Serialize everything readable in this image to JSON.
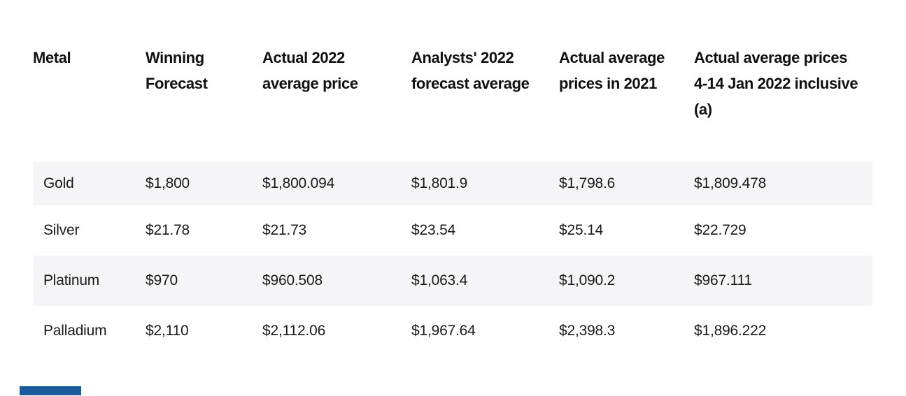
{
  "page": {
    "background": "#ffffff",
    "accent_bar_color": "#1b5a9b",
    "stripe_color": "#f5f4f6",
    "header_text_color": "#111111",
    "body_text_color": "#1a1a1a"
  },
  "table": {
    "columns": [
      {
        "label": "Metal"
      },
      {
        "label": "Winning Forecast"
      },
      {
        "label": "Actual 2022 average price"
      },
      {
        "label": "Analysts' 2022 forecast average"
      },
      {
        "label": "Actual average prices in 2021"
      },
      {
        "label": "Actual average prices 4-14 Jan 2022 inclusive (a)"
      }
    ],
    "rows": [
      {
        "metal": "Gold",
        "values": [
          "$1,800",
          "$1,800.094",
          "$1,801.9",
          "$1,798.6",
          "$1,809.478"
        ]
      },
      {
        "metal": "Silver",
        "values": [
          "$21.78",
          "$21.73",
          "$23.54",
          "$25.14",
          "$22.729"
        ]
      },
      {
        "metal": "Platinum",
        "values": [
          "$970",
          "$960.508",
          "$1,063.4",
          "$1,090.2",
          "$967.111"
        ]
      },
      {
        "metal": "Palladium",
        "values": [
          "$2,110",
          "$2,112.06",
          "$1,967.64",
          "$2,398.3",
          "$1,896.222"
        ]
      }
    ]
  },
  "chart_data": {
    "type": "table",
    "title": "",
    "columns": [
      "Metal",
      "Winning Forecast",
      "Actual 2022 average price",
      "Analysts' 2022 forecast average",
      "Actual average prices in 2021",
      "Actual average prices 4-14 Jan 2022 inclusive (a)"
    ],
    "rows": [
      [
        "Gold",
        "$1,800",
        "$1,800.094",
        "$1,801.9",
        "$1,798.6",
        "$1,809.478"
      ],
      [
        "Silver",
        "$21.78",
        "$21.73",
        "$23.54",
        "$25.14",
        "$22.729"
      ],
      [
        "Platinum",
        "$970",
        "$960.508",
        "$1,063.4",
        "$1,090.2",
        "$967.111"
      ],
      [
        "Palladium",
        "$2,110",
        "$2,112.06",
        "$1,967.64",
        "$2,398.3",
        "$1,896.222"
      ]
    ],
    "layout_hints": {
      "striped_rows": [
        "Gold",
        "Platinum"
      ],
      "header_rows": 1,
      "grid": "off"
    }
  }
}
